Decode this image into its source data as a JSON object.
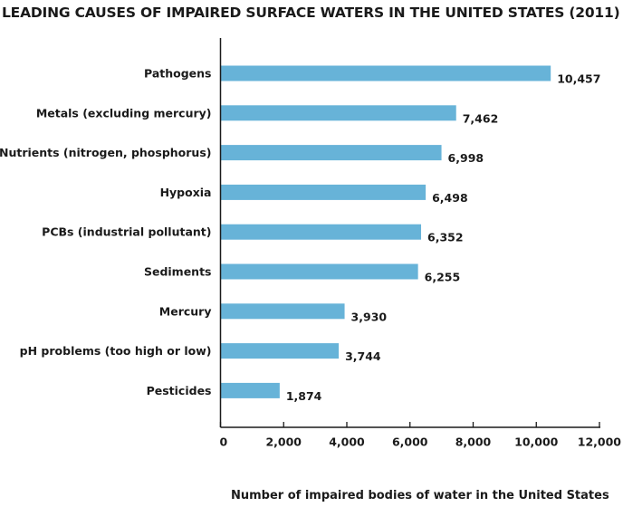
{
  "chart_data": {
    "type": "bar",
    "orientation": "horizontal",
    "title": "LEADING CAUSES OF IMPAIRED SURFACE WATERS IN THE UNITED STATES (2011)",
    "xlabel": "Number of impaired bodies of water in the United States",
    "ylabel": "",
    "categories": [
      "Pathogens",
      "Metals (excluding mercury)",
      "Nutrients (nitrogen, phosphorus)",
      "Hypoxia",
      "PCBs (industrial pollutant)",
      "Sediments",
      "Mercury",
      "pH problems (too high or low)",
      "Pesticides"
    ],
    "values": [
      10457,
      7462,
      6998,
      6498,
      6352,
      6255,
      3930,
      3744,
      1874
    ],
    "value_labels": [
      "10,457",
      "7,462",
      "6,998",
      "6,498",
      "6,352",
      "6,255",
      "3,930",
      "3,744",
      "1,874"
    ],
    "xlim": [
      0,
      12000
    ],
    "xticks": [
      0,
      2000,
      4000,
      6000,
      8000,
      10000,
      12000
    ],
    "xtick_labels": [
      "0",
      "2,000",
      "4,000",
      "6,000",
      "8,000",
      "10,000",
      "12,000"
    ],
    "bar_color": "#67b3d8",
    "grid": false,
    "legend": "none"
  }
}
